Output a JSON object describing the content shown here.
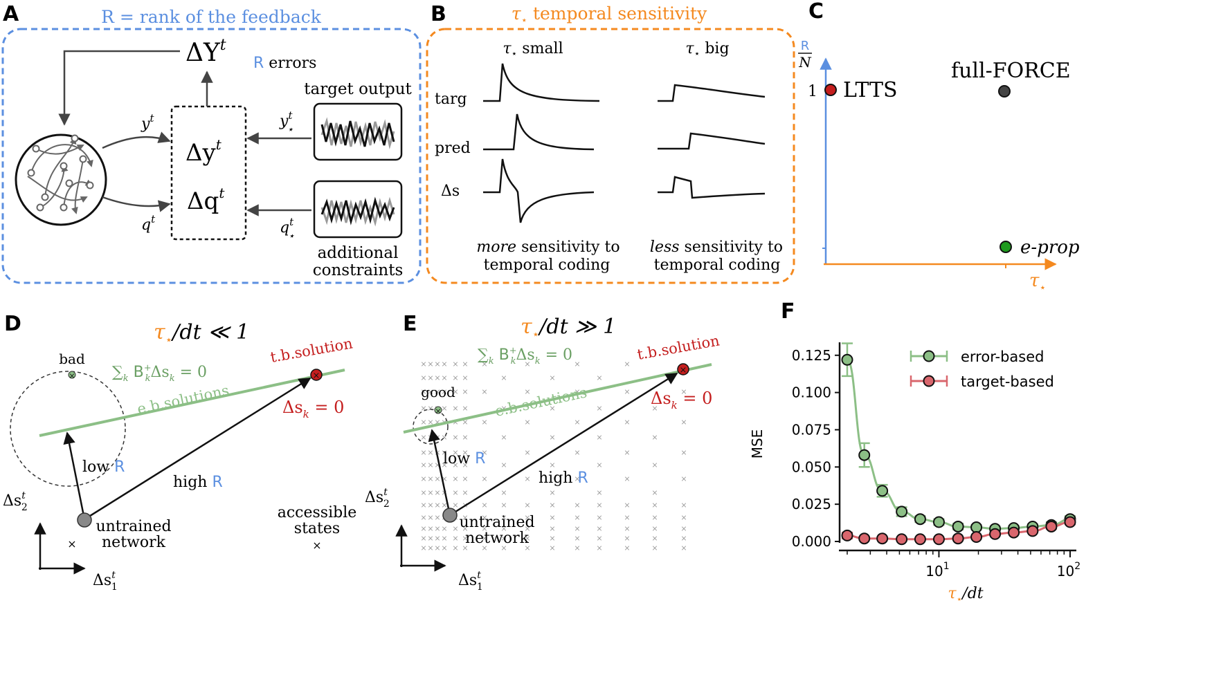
{
  "colors": {
    "blue": "#5b8fe0",
    "orange": "#f4891f",
    "green": "#8cbf86",
    "green_dark": "#6a9f63",
    "red": "#c41e1e",
    "red_curve": "#d9666d",
    "gray": "#777777"
  },
  "panel_labels": {
    "a": "A",
    "b": "B",
    "c": "C",
    "d": "D",
    "e": "E",
    "f": "F"
  },
  "panel_a": {
    "title": "R = rank of the feedback",
    "delta_y_big": "ΔY",
    "delta_y_big_sup": "t",
    "errors_r": "R",
    "errors_word": " errors",
    "target_output": "target output",
    "y_t": "y",
    "y_t_sup": "t",
    "q_t": "q",
    "q_t_sup": "t",
    "y_star": "y",
    "y_star_sup": "t",
    "y_star_sub": "⋆",
    "q_star": "q",
    "q_star_sup": "t",
    "q_star_sub": "⋆",
    "delta_y_small": "Δy",
    "delta_y_small_sup": "t",
    "delta_q": "Δq",
    "delta_q_sup": "t",
    "additional_1": "additional",
    "additional_2": "constraints"
  },
  "panel_b": {
    "title_tau": "τ",
    "title_star": "⋆",
    "title_rest": " temporal sensitivity",
    "col_small_tau": "τ",
    "col_small_star": "⋆",
    "col_small_rest": " small",
    "col_big_tau": "τ",
    "col_big_star": "⋆",
    "col_big_rest": " big",
    "row_targ": "targ",
    "row_pred": "pred",
    "row_ds": "Δs",
    "foot_left_1_it": "more",
    "foot_left_1_rest": " sensitivity to",
    "foot_left_2": "temporal coding",
    "foot_right_1_it": "less",
    "foot_right_1_rest": " sensitivity to",
    "foot_right_2": "temporal coding"
  },
  "panel_c": {
    "y_frac_num": "R",
    "y_frac_den": "N",
    "y_tick": "1",
    "x_label_tau": "τ",
    "x_label_star": "⋆",
    "ltts": "LTTS",
    "fullforce": "full-FORCE",
    "eprop": "e-prop"
  },
  "panel_d": {
    "title_tau": "τ",
    "title_star": "⋆",
    "title_rest": "/dt ≪ 1",
    "bad": "bad",
    "eq": "∑",
    "eq_k": "k",
    "eq_b": " B",
    "eq_plus": "+",
    "eq_k2": "k",
    "eq_rest": "Δs",
    "eq_k3": "k",
    "eq_end": " = 0",
    "ebsol": "e.b.solutions",
    "tbsol": "t.b.solution",
    "dsk": "Δs",
    "dsk_sub": "k",
    "dsk_end": " = 0",
    "low": "low ",
    "low_r": "R",
    "high": "high ",
    "high_r": "R",
    "untrained_1": "untrained",
    "untrained_2": "network",
    "accessible_1": "accessible",
    "accessible_2": "states",
    "ax_y": "Δs",
    "ax_y_sup": "t",
    "ax_y_sub": "2",
    "ax_x": "Δs",
    "ax_x_sup": "t",
    "ax_x_sub": "1"
  },
  "panel_e": {
    "title_tau": "τ",
    "title_star": "⋆",
    "title_rest": "/dt ≫ 1",
    "good": "good",
    "eq": "∑",
    "eq_k": "k",
    "eq_b": " B",
    "eq_plus": "+",
    "eq_k2": "k",
    "eq_rest": "Δs",
    "eq_k3": "k",
    "eq_end": " = 0",
    "ebsol": "e.b.solutions",
    "tbsol": "t.b.solution",
    "dsk": "Δs",
    "dsk_sub": "k",
    "dsk_end": " = 0",
    "low": "low ",
    "low_r": "R",
    "high": "high ",
    "high_r": "R",
    "untrained_1": "untrained",
    "untrained_2": "network",
    "ax_y": "Δs",
    "ax_y_sup": "t",
    "ax_y_sub": "2",
    "ax_x": "Δs",
    "ax_x_sup": "t",
    "ax_x_sub": "1"
  },
  "chart_data": {
    "type": "line",
    "xscale": "log",
    "xlim": [
      1.75,
      105
    ],
    "ylim": [
      0,
      0.13
    ],
    "ylabel": "MSE",
    "xlabel_tau": "τ",
    "xlabel_star": "⋆",
    "xlabel_rest": "/dt",
    "xticks": [
      {
        "base": "10",
        "exp": "1",
        "value": 10
      },
      {
        "base": "10",
        "exp": "2",
        "value": 100
      }
    ],
    "yticks": [
      "0.000",
      "0.025",
      "0.050",
      "0.075",
      "0.100",
      "0.125"
    ],
    "ytick_values": [
      0,
      0.025,
      0.05,
      0.075,
      0.1,
      0.125
    ],
    "legend_position": "top-right",
    "series": [
      {
        "name": "error-based",
        "color": "#8cbf86",
        "x": [
          2,
          2.7,
          3.7,
          5.2,
          7.2,
          10,
          14,
          19.3,
          26.8,
          37.2,
          51.8,
          72,
          100
        ],
        "y": [
          0.122,
          0.058,
          0.034,
          0.02,
          0.015,
          0.013,
          0.01,
          0.0095,
          0.0085,
          0.009,
          0.01,
          0.011,
          0.015
        ],
        "err": [
          0.011,
          0.008,
          0.004,
          0.003,
          0.002,
          0.002,
          0.002,
          0.0015,
          0.0015,
          0.0015,
          0.0015,
          0.002,
          0.002
        ]
      },
      {
        "name": "target-based",
        "color": "#d9666d",
        "x": [
          2,
          2.7,
          3.7,
          5.2,
          7.2,
          10,
          14,
          19.3,
          26.8,
          37.2,
          51.8,
          72,
          100
        ],
        "y": [
          0.004,
          0.002,
          0.002,
          0.0015,
          0.0015,
          0.0015,
          0.002,
          0.003,
          0.005,
          0.006,
          0.007,
          0.01,
          0.013
        ],
        "err": [
          0.002,
          0.001,
          0.001,
          0.001,
          0.001,
          0.001,
          0.001,
          0.001,
          0.001,
          0.001,
          0.001,
          0.0015,
          0.0015
        ]
      }
    ]
  }
}
